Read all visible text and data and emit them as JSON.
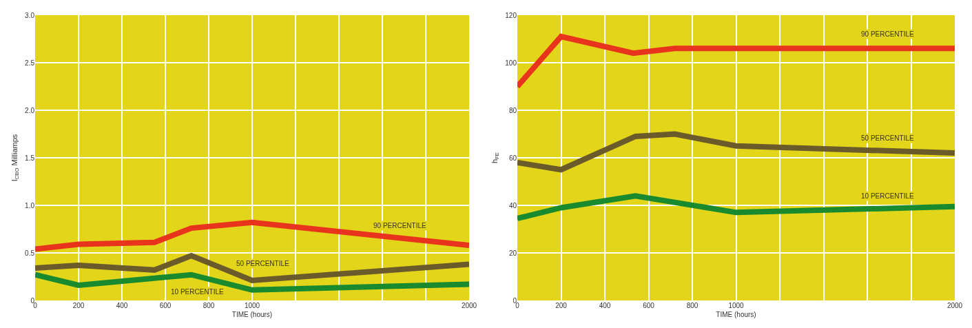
{
  "chart_data": [
    {
      "type": "line",
      "xlabel": "TIME (hours)",
      "ylabel": "I$_{CBO}$ Milliamps",
      "xlim": [
        0,
        2000
      ],
      "xticks": [
        0,
        200,
        400,
        600,
        800,
        1000,
        {
          "value": 1200,
          "label": null
        },
        {
          "value": 1400,
          "label": null
        },
        {
          "value": 1600,
          "label": null
        },
        {
          "value": 1800,
          "label": null
        },
        2000
      ],
      "ylim": [
        0,
        3
      ],
      "yticks": [
        0,
        0.5,
        {
          "value": 1,
          "label": "1.0"
        },
        1.5,
        {
          "value": 2,
          "label": "2.0"
        },
        2.5,
        {
          "value": 3,
          "label": "3.0"
        }
      ],
      "grid": true,
      "series": [
        {
          "color": "#e8341c",
          "x": [
            0,
            200,
            550,
            720,
            1000,
            2000
          ],
          "values": [
            0.54,
            0.59,
            0.61,
            0.76,
            0.82,
            0.58
          ]
        },
        {
          "color": "#6b5a2a",
          "x": [
            0,
            200,
            550,
            720,
            1000,
            2000
          ],
          "values": [
            0.34,
            0.37,
            0.32,
            0.47,
            0.21,
            0.38
          ]
        },
        {
          "color": "#1a8a2e",
          "x": [
            0,
            200,
            720,
            1000,
            2000
          ],
          "values": [
            0.27,
            0.16,
            0.27,
            0.11,
            0.17
          ]
        }
      ],
      "annotations": [
        "90 PERCENTILE",
        "50 PERCENTILE",
        "10 PERCENTILE"
      ]
    },
    {
      "type": "line",
      "xlabel": "TIME (hours)",
      "ylabel": "h$_{FE}$",
      "xlim": [
        0,
        2000
      ],
      "xticks": [
        0,
        200,
        400,
        600,
        800,
        1000,
        {
          "value": 1200,
          "label": null
        },
        {
          "value": 1400,
          "label": null
        },
        {
          "value": 1600,
          "label": null
        },
        {
          "value": 1800,
          "label": null
        },
        2000
      ],
      "ylim": [
        0,
        120
      ],
      "yticks": [
        0,
        20,
        40,
        60,
        80,
        100,
        120
      ],
      "grid": true,
      "series": [
        {
          "color": "#e8341c",
          "x": [
            0,
            200,
            530,
            720,
            1000,
            2000
          ],
          "values": [
            90,
            111,
            104,
            106,
            106,
            106
          ]
        },
        {
          "color": "#6b5a2a",
          "x": [
            0,
            200,
            540,
            720,
            1000,
            2000
          ],
          "values": [
            58,
            55,
            69,
            70,
            65,
            62
          ]
        },
        {
          "color": "#1a8a2e",
          "x": [
            0,
            200,
            540,
            1000,
            2000
          ],
          "values": [
            34.5,
            39,
            44,
            37,
            39.5
          ]
        }
      ],
      "annotations": [
        "90 PERCENTILE",
        "50 PERCENTILE",
        "10 PERCENTILE"
      ]
    }
  ]
}
